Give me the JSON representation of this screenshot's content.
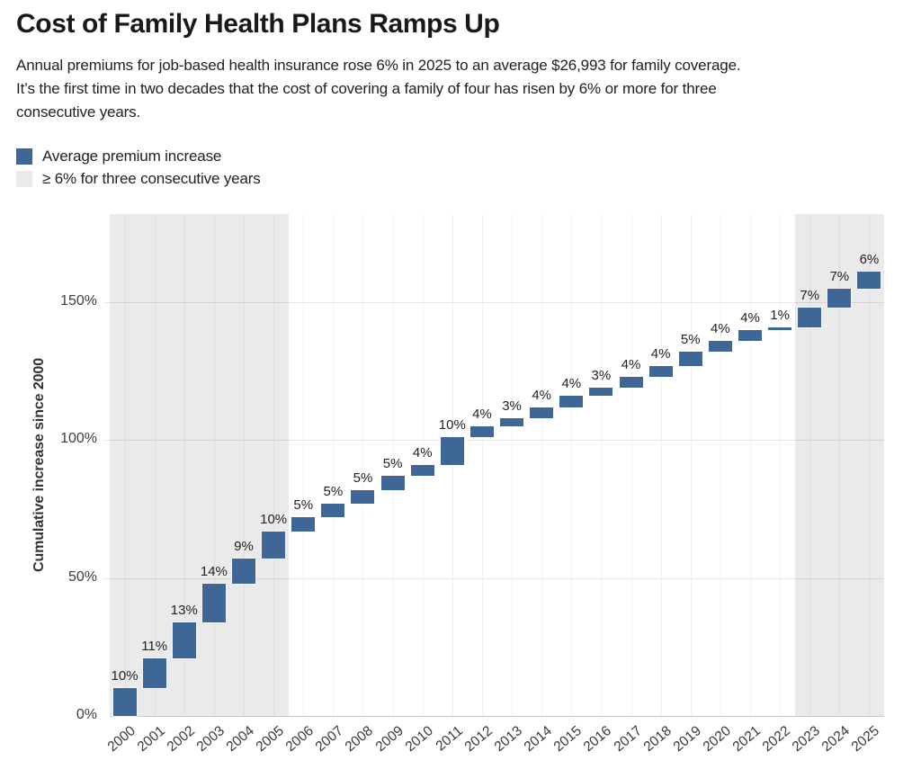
{
  "page": {
    "title": "Cost of Family Health Plans Ramps Up",
    "subtitle_lines": [
      "Annual premiums for job-based health insurance rose 6% in 2025 to an average $26,993 for family coverage.",
      "It’s the first time in two decades that the cost of covering a family of four has risen by 6% or more for three",
      "consecutive years."
    ]
  },
  "legend": {
    "items": [
      {
        "label": "Average premium increase",
        "color": "#3e6795"
      },
      {
        "label": "≥ 6% for three consecutive years",
        "color": "#eaeaea"
      }
    ]
  },
  "chart_data": {
    "type": "bar",
    "subtype": "waterfall",
    "title": "Cost of Family Health Plans Ramps Up",
    "xlabel": "",
    "ylabel": "Cumulative increase since 2000",
    "categories": [
      2000,
      2001,
      2002,
      2003,
      2004,
      2005,
      2006,
      2007,
      2008,
      2009,
      2010,
      2011,
      2012,
      2013,
      2014,
      2015,
      2016,
      2017,
      2018,
      2019,
      2020,
      2021,
      2022,
      2023,
      2024,
      2025
    ],
    "values": [
      10,
      11,
      13,
      14,
      9,
      10,
      5,
      5,
      5,
      5,
      4,
      10,
      4,
      3,
      4,
      4,
      3,
      4,
      4,
      5,
      4,
      4,
      1,
      7,
      7,
      6
    ],
    "value_suffix": "%",
    "cumulative_end": [
      10,
      21,
      34,
      48,
      57,
      67,
      72,
      77,
      82,
      87,
      91,
      101,
      105,
      108,
      112,
      116,
      119,
      123,
      127,
      132,
      136,
      140,
      141,
      148,
      155,
      161
    ],
    "ylim": [
      0,
      182
    ],
    "y_ticks": [
      {
        "value": 0,
        "label": "0%"
      },
      {
        "value": 50,
        "label": "50%"
      },
      {
        "value": 100,
        "label": "100%"
      },
      {
        "value": 150,
        "label": "150%"
      }
    ],
    "grid": true,
    "legend_position": "top-left",
    "highlight_bands": [
      {
        "from_year": 2000,
        "to_year": 2005
      },
      {
        "from_year": 2023,
        "to_year": 2025
      }
    ],
    "colors": {
      "bar": "#3e6795",
      "band": "#eaeaea"
    }
  }
}
